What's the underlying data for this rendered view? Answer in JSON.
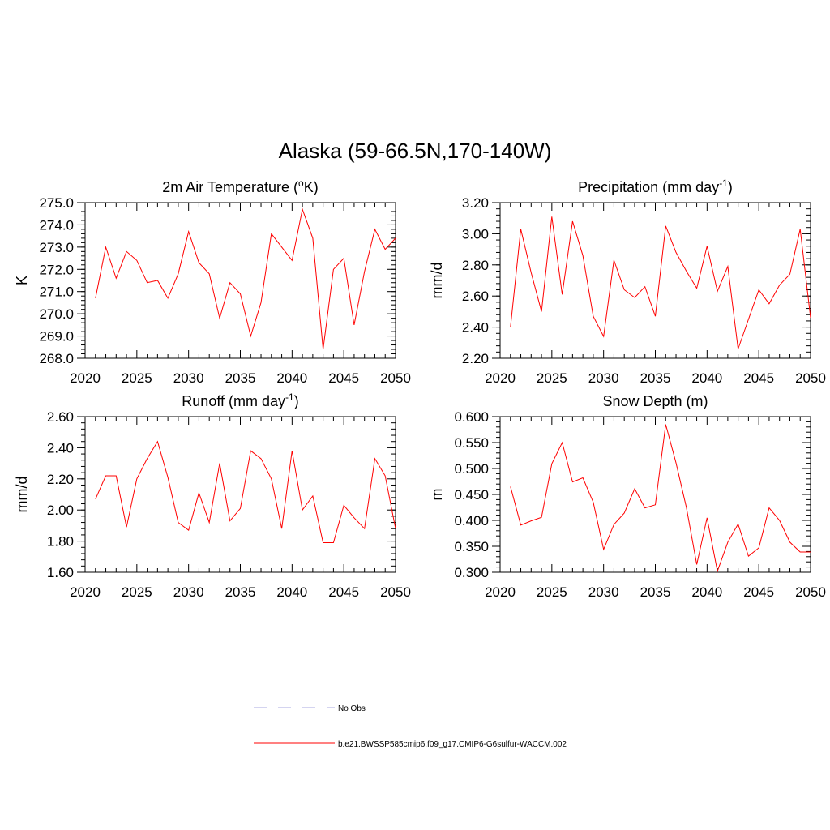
{
  "figure": {
    "title": "Alaska (59-66.5N,170-140W)",
    "legend": {
      "entries": [
        {
          "label": "No Obs",
          "style": "dashed",
          "color": "#a9a9e0"
        },
        {
          "label": "b.e21.BWSSP585cmip6.f09_g17.CMIP6-G6sulfur-WACCM.002",
          "style": "solid",
          "color": "#ff0000"
        }
      ]
    }
  },
  "chart_data": [
    {
      "type": "line",
      "title": "2m Air Temperature (°K)",
      "title_parts": {
        "pre": "2m Air Temperature (",
        "sup": "o",
        "post": "K)"
      },
      "ylabel": "K",
      "xlim": [
        2020,
        2050
      ],
      "ylim": [
        268.0,
        275.0
      ],
      "xticks": [
        2020,
        2025,
        2030,
        2035,
        2040,
        2045,
        2050
      ],
      "yticks": [
        268.0,
        269.0,
        270.0,
        271.0,
        272.0,
        273.0,
        274.0,
        275.0
      ],
      "yminor": 0.2,
      "decimals": 1,
      "x": [
        2021,
        2022,
        2023,
        2024,
        2025,
        2026,
        2027,
        2028,
        2029,
        2030,
        2031,
        2032,
        2033,
        2034,
        2035,
        2036,
        2037,
        2038,
        2039,
        2040,
        2041,
        2042,
        2043,
        2044,
        2045,
        2046,
        2047,
        2048,
        2049,
        2050
      ],
      "series": [
        {
          "name": "b.e21.BWSSP585cmip6.f09_g17.CMIP6-G6sulfur-WACCM.002",
          "color": "#ff0000",
          "values": [
            270.7,
            273.0,
            271.6,
            272.8,
            272.4,
            271.4,
            271.5,
            270.7,
            271.8,
            273.7,
            272.3,
            271.8,
            269.8,
            271.4,
            270.9,
            269.0,
            270.5,
            273.6,
            273.0,
            272.4,
            274.7,
            273.4,
            268.4,
            272.0,
            272.5,
            269.5,
            271.9,
            273.8,
            272.9,
            273.4
          ]
        }
      ]
    },
    {
      "type": "line",
      "title": "Precipitation (mm day-1)",
      "title_parts": {
        "pre": "Precipitation (mm day",
        "sup": "-1",
        "post": ")"
      },
      "ylabel": "mm/d",
      "xlim": [
        2020,
        2050
      ],
      "ylim": [
        2.2,
        3.2
      ],
      "xticks": [
        2020,
        2025,
        2030,
        2035,
        2040,
        2045,
        2050
      ],
      "yticks": [
        2.2,
        2.4,
        2.6,
        2.8,
        3.0,
        3.2
      ],
      "yminor": 0.04,
      "decimals": 2,
      "x": [
        2021,
        2022,
        2023,
        2024,
        2025,
        2026,
        2027,
        2028,
        2029,
        2030,
        2031,
        2032,
        2033,
        2034,
        2035,
        2036,
        2037,
        2038,
        2039,
        2040,
        2041,
        2042,
        2043,
        2044,
        2045,
        2046,
        2047,
        2048,
        2049,
        2050
      ],
      "series": [
        {
          "name": "b.e21.BWSSP585cmip6.f09_g17.CMIP6-G6sulfur-WACCM.002",
          "color": "#ff0000",
          "values": [
            2.4,
            3.03,
            2.75,
            2.5,
            3.11,
            2.61,
            3.08,
            2.86,
            2.47,
            2.34,
            2.83,
            2.64,
            2.59,
            2.66,
            2.47,
            3.05,
            2.88,
            2.76,
            2.65,
            2.92,
            2.63,
            2.79,
            2.26,
            2.45,
            2.64,
            2.55,
            2.67,
            2.74,
            3.03,
            2.46
          ]
        }
      ]
    },
    {
      "type": "line",
      "title": "Runoff (mm day-1)",
      "title_parts": {
        "pre": "Runoff (mm day",
        "sup": "-1",
        "post": ")"
      },
      "ylabel": "mm/d",
      "xlim": [
        2020,
        2050
      ],
      "ylim": [
        1.6,
        2.6
      ],
      "xticks": [
        2020,
        2025,
        2030,
        2035,
        2040,
        2045,
        2050
      ],
      "yticks": [
        1.6,
        1.8,
        2.0,
        2.2,
        2.4,
        2.6
      ],
      "yminor": 0.04,
      "decimals": 2,
      "x": [
        2021,
        2022,
        2023,
        2024,
        2025,
        2026,
        2027,
        2028,
        2029,
        2030,
        2031,
        2032,
        2033,
        2034,
        2035,
        2036,
        2037,
        2038,
        2039,
        2040,
        2041,
        2042,
        2043,
        2044,
        2045,
        2046,
        2047,
        2048,
        2049,
        2050
      ],
      "series": [
        {
          "name": "b.e21.BWSSP585cmip6.f09_g17.CMIP6-G6sulfur-WACCM.002",
          "color": "#ff0000",
          "values": [
            2.07,
            2.22,
            2.22,
            1.89,
            2.2,
            2.33,
            2.44,
            2.21,
            1.92,
            1.87,
            2.11,
            1.92,
            2.3,
            1.93,
            2.01,
            2.38,
            2.33,
            2.2,
            1.88,
            2.38,
            2.0,
            2.09,
            1.79,
            1.79,
            2.03,
            1.95,
            1.88,
            2.33,
            2.22,
            1.88
          ]
        }
      ]
    },
    {
      "type": "line",
      "title": "Snow Depth (m)",
      "title_parts": {
        "pre": "Snow Depth (m)",
        "sup": "",
        "post": ""
      },
      "ylabel": "m",
      "xlim": [
        2020,
        2050
      ],
      "ylim": [
        0.3,
        0.6
      ],
      "xticks": [
        2020,
        2025,
        2030,
        2035,
        2040,
        2045,
        2050
      ],
      "yticks": [
        0.3,
        0.35,
        0.4,
        0.45,
        0.5,
        0.55,
        0.6
      ],
      "yminor": 0.01,
      "decimals": 3,
      "x": [
        2021,
        2022,
        2023,
        2024,
        2025,
        2026,
        2027,
        2028,
        2029,
        2030,
        2031,
        2032,
        2033,
        2034,
        2035,
        2036,
        2037,
        2038,
        2039,
        2040,
        2041,
        2042,
        2043,
        2044,
        2045,
        2046,
        2047,
        2048,
        2049,
        2050
      ],
      "series": [
        {
          "name": "b.e21.BWSSP585cmip6.f09_g17.CMIP6-G6sulfur-WACCM.002",
          "color": "#ff0000",
          "values": [
            0.465,
            0.391,
            0.399,
            0.406,
            0.509,
            0.55,
            0.474,
            0.482,
            0.435,
            0.344,
            0.392,
            0.414,
            0.461,
            0.424,
            0.43,
            0.585,
            0.511,
            0.425,
            0.315,
            0.405,
            0.302,
            0.358,
            0.393,
            0.331,
            0.347,
            0.424,
            0.4,
            0.358,
            0.339,
            0.339
          ]
        }
      ]
    }
  ]
}
